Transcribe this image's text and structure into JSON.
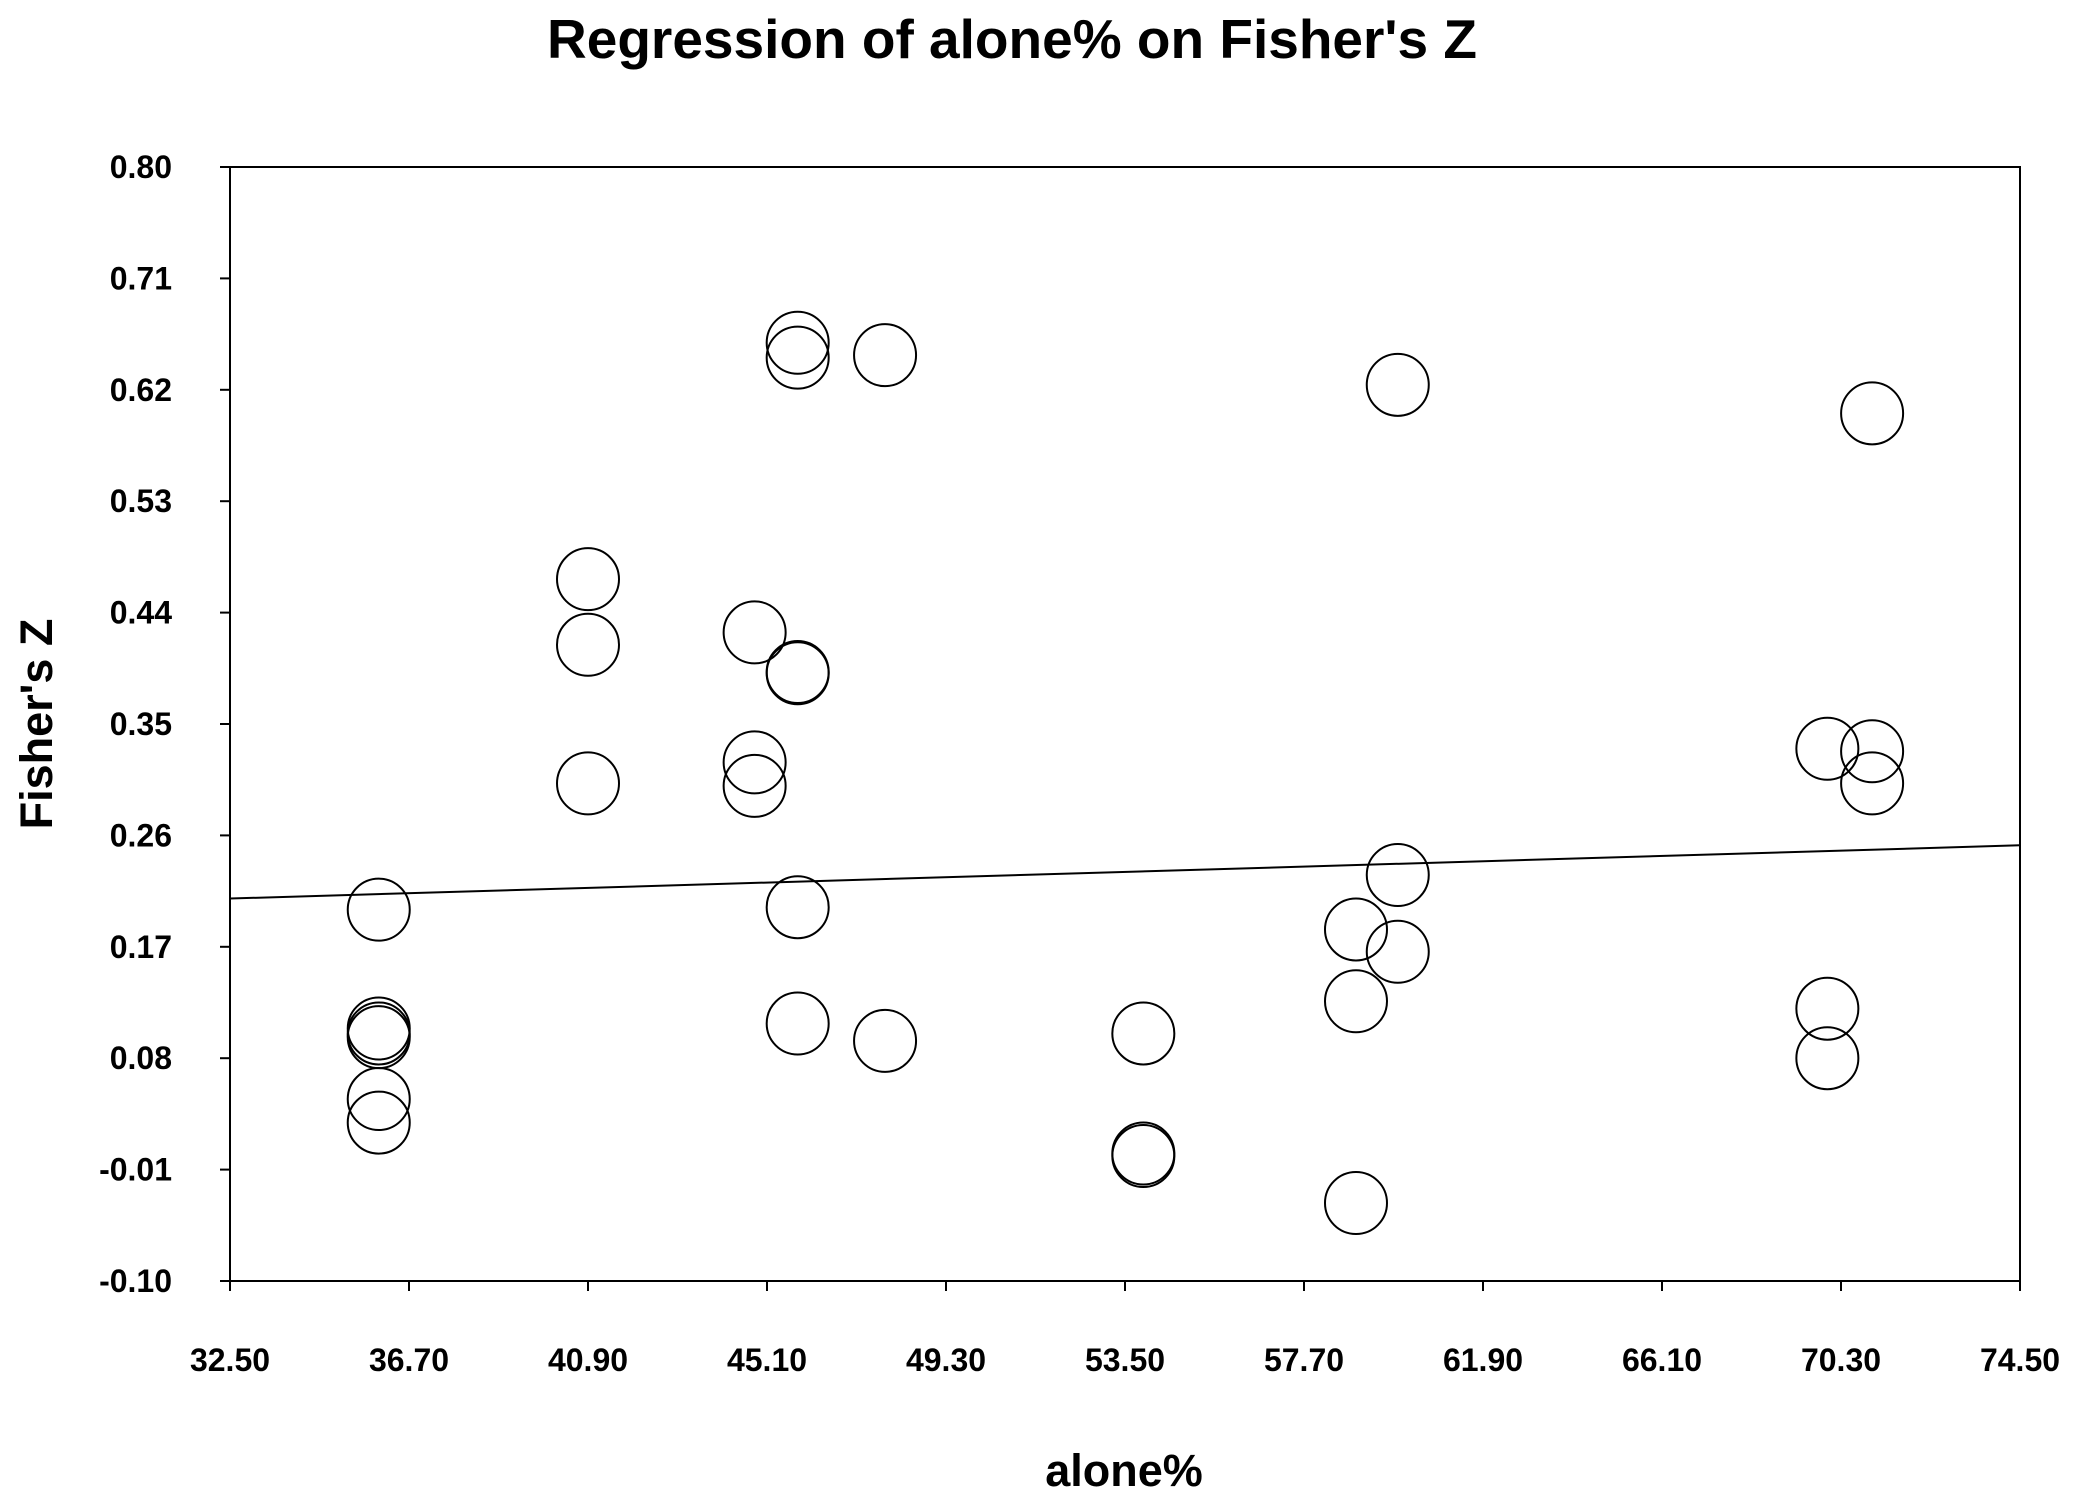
{
  "chart_data": {
    "type": "scatter",
    "title": "Regression of alone% on Fisher's Z",
    "xlabel": "alone%",
    "ylabel": "Fisher's Z",
    "xlim": [
      32.5,
      74.5
    ],
    "ylim": [
      -0.1,
      0.8
    ],
    "x_ticks": [
      "32.50",
      "36.70",
      "40.90",
      "45.10",
      "49.30",
      "53.50",
      "57.70",
      "61.90",
      "66.10",
      "70.30",
      "74.50"
    ],
    "y_ticks": [
      "0.80",
      "0.71",
      "0.62",
      "0.53",
      "0.44",
      "0.35",
      "0.26",
      "0.17",
      "0.08",
      "-0.01",
      "-0.10"
    ],
    "grid": false,
    "legend": "none",
    "marker": "open-circle",
    "points": [
      {
        "x": 35.99,
        "y": 0.2
      },
      {
        "x": 35.99,
        "y": 0.104
      },
      {
        "x": 35.99,
        "y": 0.1
      },
      {
        "x": 35.99,
        "y": 0.097
      },
      {
        "x": 35.99,
        "y": 0.047
      },
      {
        "x": 35.99,
        "y": 0.028
      },
      {
        "x": 40.9,
        "y": 0.467
      },
      {
        "x": 40.9,
        "y": 0.414
      },
      {
        "x": 40.9,
        "y": 0.302
      },
      {
        "x": 44.81,
        "y": 0.424
      },
      {
        "x": 44.81,
        "y": 0.319
      },
      {
        "x": 44.81,
        "y": 0.3
      },
      {
        "x": 45.82,
        "y": 0.658
      },
      {
        "x": 45.82,
        "y": 0.646
      },
      {
        "x": 45.82,
        "y": 0.392
      },
      {
        "x": 45.82,
        "y": 0.391
      },
      {
        "x": 45.82,
        "y": 0.202
      },
      {
        "x": 45.82,
        "y": 0.108
      },
      {
        "x": 47.87,
        "y": 0.648
      },
      {
        "x": 47.87,
        "y": 0.094
      },
      {
        "x": 53.93,
        "y": 0.1
      },
      {
        "x": 53.93,
        "y": 0.003
      },
      {
        "x": 53.93,
        "y": 0.001
      },
      {
        "x": 58.92,
        "y": 0.184
      },
      {
        "x": 58.92,
        "y": 0.126
      },
      {
        "x": 58.92,
        "y": -0.037
      },
      {
        "x": 59.9,
        "y": 0.624
      },
      {
        "x": 59.9,
        "y": 0.228
      },
      {
        "x": 59.9,
        "y": 0.166
      },
      {
        "x": 69.98,
        "y": 0.33
      },
      {
        "x": 69.98,
        "y": 0.12
      },
      {
        "x": 69.98,
        "y": 0.08
      },
      {
        "x": 71.03,
        "y": 0.601
      },
      {
        "x": 71.03,
        "y": 0.328
      },
      {
        "x": 71.03,
        "y": 0.302
      }
    ],
    "regression_line": {
      "x": [
        32.5,
        74.5
      ],
      "y": [
        0.209,
        0.252
      ]
    }
  }
}
